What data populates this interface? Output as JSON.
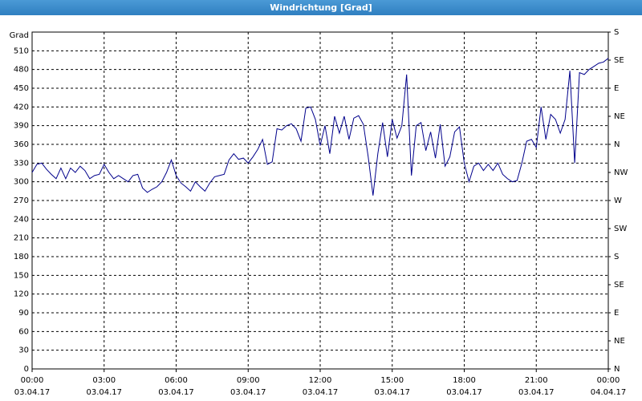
{
  "chart_data": {
    "type": "line",
    "title": "Windrichtung [Grad]",
    "ylabel": "Grad",
    "x": [
      0,
      0.2,
      0.4,
      0.6,
      0.8,
      1,
      1.2,
      1.4,
      1.6,
      1.8,
      2,
      2.2,
      2.4,
      2.6,
      2.8,
      3,
      3.2,
      3.4,
      3.6,
      3.8,
      4,
      4.2,
      4.4,
      4.6,
      4.8,
      5,
      5.2,
      5.4,
      5.6,
      5.8,
      6,
      6.2,
      6.4,
      6.6,
      6.8,
      7,
      7.2,
      7.4,
      7.6,
      7.8,
      8,
      8.2,
      8.4,
      8.6,
      8.8,
      9,
      9.2,
      9.4,
      9.6,
      9.8,
      10,
      10.2,
      10.4,
      10.6,
      10.8,
      11,
      11.2,
      11.4,
      11.6,
      11.8,
      12,
      12.2,
      12.4,
      12.6,
      12.8,
      13,
      13.2,
      13.4,
      13.6,
      13.8,
      14,
      14.2,
      14.4,
      14.6,
      14.8,
      15,
      15.2,
      15.4,
      15.6,
      15.8,
      16,
      16.2,
      16.4,
      16.6,
      16.8,
      17,
      17.2,
      17.4,
      17.6,
      17.8,
      18,
      18.2,
      18.4,
      18.6,
      18.8,
      19,
      19.2,
      19.4,
      19.6,
      19.8,
      20,
      20.2,
      20.4,
      20.6,
      20.8,
      21,
      21.2,
      21.4,
      21.6,
      21.8,
      22,
      22.2,
      22.4,
      22.6,
      22.8,
      23,
      23.2,
      23.4,
      23.6,
      23.8,
      24
    ],
    "series": [
      {
        "name": "Windrichtung",
        "color": "#00008b",
        "values": [
          315,
          328,
          330,
          320,
          312,
          305,
          322,
          305,
          322,
          315,
          325,
          318,
          305,
          310,
          312,
          328,
          315,
          305,
          310,
          305,
          300,
          310,
          312,
          290,
          283,
          288,
          292,
          300,
          315,
          335,
          310,
          298,
          292,
          285,
          300,
          292,
          285,
          298,
          308,
          310,
          312,
          335,
          345,
          336,
          338,
          330,
          340,
          352,
          368,
          328,
          332,
          385,
          383,
          390,
          393,
          385,
          365,
          418,
          420,
          400,
          358,
          390,
          345,
          405,
          378,
          405,
          368,
          402,
          406,
          392,
          340,
          278,
          345,
          395,
          340,
          400,
          370,
          390,
          472,
          310,
          390,
          395,
          350,
          380,
          338,
          392,
          325,
          340,
          380,
          388,
          330,
          300,
          325,
          330,
          318,
          328,
          318,
          330,
          312,
          305,
          300,
          302,
          330,
          365,
          368,
          355,
          420,
          368,
          408,
          400,
          378,
          400,
          478,
          330,
          475,
          472,
          480,
          485,
          490,
          492,
          498
        ]
      }
    ],
    "xlim": [
      0,
      24
    ],
    "xticks": [
      {
        "value": 0,
        "label": "00:00"
      },
      {
        "value": 3,
        "label": "03:00"
      },
      {
        "value": 6,
        "label": "06:00"
      },
      {
        "value": 9,
        "label": "09:00"
      },
      {
        "value": 12,
        "label": "12:00"
      },
      {
        "value": 15,
        "label": "15:00"
      },
      {
        "value": 18,
        "label": "18:00"
      },
      {
        "value": 21,
        "label": "21:00"
      },
      {
        "value": 24,
        "label": "00:00"
      }
    ],
    "xtick_dates": [
      "03.04.17",
      "03.04.17",
      "03.04.17",
      "03.04.17",
      "03.04.17",
      "03.04.17",
      "03.04.17",
      "03.04.17",
      "04.04.17"
    ],
    "ylim": [
      0,
      540
    ],
    "yticks": [
      0,
      30,
      60,
      90,
      120,
      150,
      180,
      210,
      240,
      270,
      300,
      330,
      360,
      390,
      420,
      450,
      480,
      510
    ],
    "y2lim": [
      0,
      540
    ],
    "y2ticks": [
      {
        "value": 0,
        "label": "N"
      },
      {
        "value": 45,
        "label": "NE"
      },
      {
        "value": 90,
        "label": "E"
      },
      {
        "value": 135,
        "label": "SE"
      },
      {
        "value": 180,
        "label": "S"
      },
      {
        "value": 225,
        "label": "SW"
      },
      {
        "value": 270,
        "label": "W"
      },
      {
        "value": 315,
        "label": "NW"
      },
      {
        "value": 360,
        "label": "N"
      },
      {
        "value": 405,
        "label": "NE"
      },
      {
        "value": 450,
        "label": "E"
      },
      {
        "value": 495,
        "label": "SE"
      },
      {
        "value": 540,
        "label": "S"
      }
    ],
    "grid": true
  }
}
